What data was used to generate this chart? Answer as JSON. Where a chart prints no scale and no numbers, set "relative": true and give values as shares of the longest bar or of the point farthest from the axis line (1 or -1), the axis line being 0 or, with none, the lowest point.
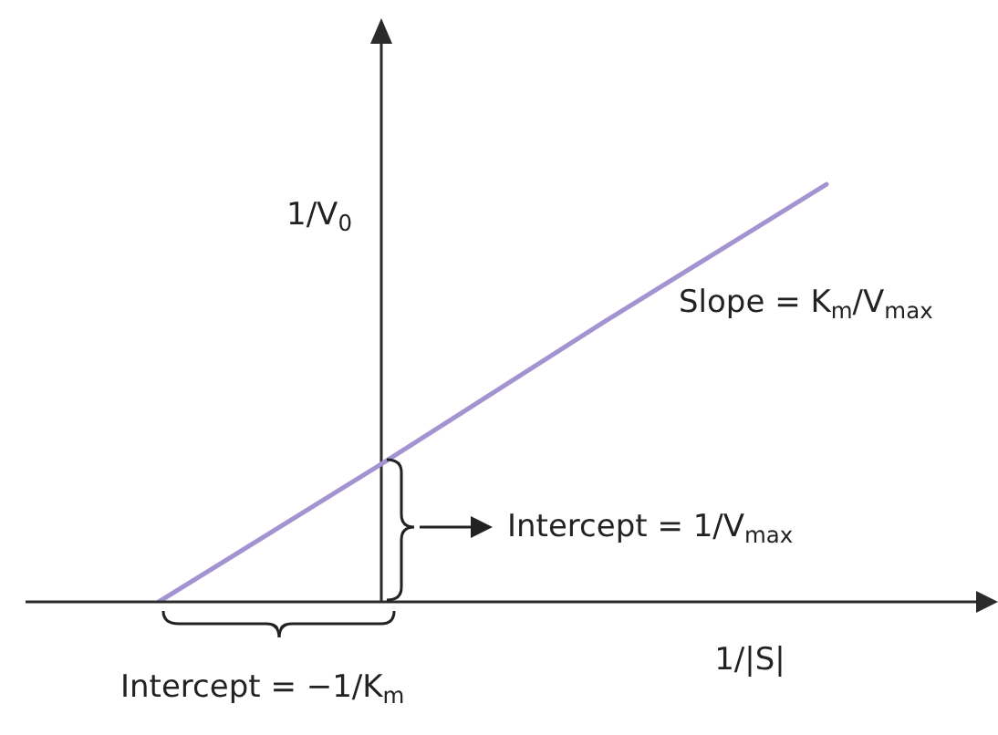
{
  "chart_data": {
    "type": "line",
    "xlabel": "1/|S|",
    "ylabel": "1/V$_{0}$",
    "annotations": [
      "Slope = K$_{m}$/V$_{max}$",
      "Intercept = 1/V$_{max}$",
      "Intercept = −1/K$_{m}$"
    ],
    "categories": [
      null,
      null,
      null,
      null
    ],
    "values": [
      0,
      0.33,
      0.67,
      1
    ],
    "color": "#a393d1",
    "relative": true,
    "marker": "none"
  }
}
